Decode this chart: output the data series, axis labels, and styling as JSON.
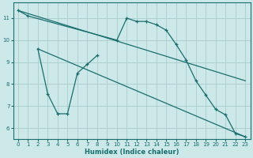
{
  "xlabel": "Humidex (Indice chaleur)",
  "background_color": "#cce8e8",
  "grid_color": "#aacccc",
  "line_color": "#1a6e6e",
  "xlim": [
    -0.5,
    23.5
  ],
  "ylim": [
    5.5,
    11.7
  ],
  "xtick_labels": [
    "0",
    "1",
    "2",
    "3",
    "4",
    "5",
    "6",
    "7",
    "8",
    "9",
    "10",
    "11",
    "12",
    "13",
    "14",
    "15",
    "16",
    "17",
    "18",
    "19",
    "20",
    "21",
    "22",
    "23"
  ],
  "xticks": [
    0,
    1,
    2,
    3,
    4,
    5,
    6,
    7,
    8,
    9,
    10,
    11,
    12,
    13,
    14,
    15,
    16,
    17,
    18,
    19,
    20,
    21,
    22,
    23
  ],
  "yticks": [
    6,
    7,
    8,
    9,
    10,
    11
  ],
  "line_top_diag": {
    "x": [
      0,
      23
    ],
    "y": [
      11.35,
      8.15
    ]
  },
  "line_bot_diag": {
    "x": [
      2,
      23
    ],
    "y": [
      9.6,
      5.6
    ]
  },
  "line_curve": {
    "x": [
      0,
      1,
      10,
      11,
      12,
      13,
      14,
      15,
      16,
      17,
      18,
      19,
      20,
      21,
      22,
      23
    ],
    "y": [
      11.35,
      11.1,
      10.0,
      11.0,
      10.85,
      10.85,
      10.7,
      10.45,
      9.8,
      9.1,
      8.15,
      7.5,
      6.85,
      6.6,
      5.75,
      5.6
    ]
  },
  "line_zigzag": {
    "x": [
      2,
      3,
      4,
      5,
      6,
      7,
      8
    ],
    "y": [
      9.6,
      7.55,
      6.65,
      6.65,
      8.5,
      8.9,
      9.3
    ]
  }
}
